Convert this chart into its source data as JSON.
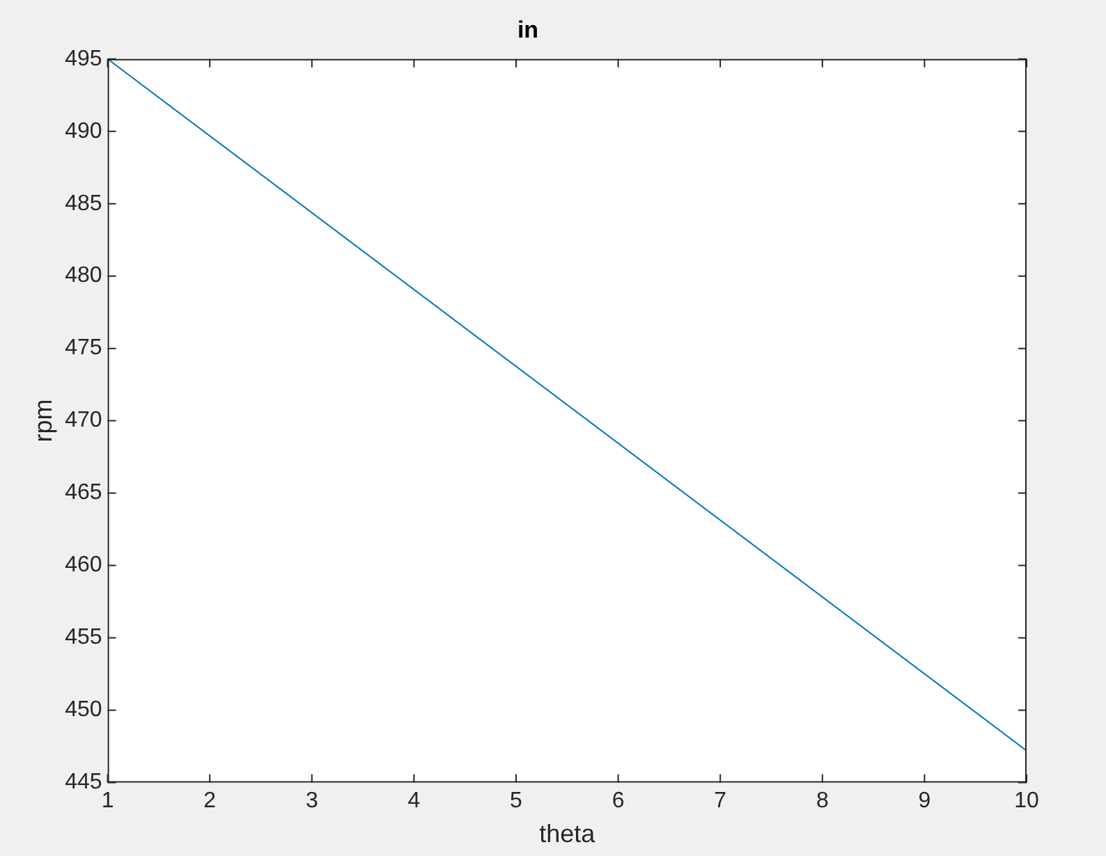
{
  "chart_data": {
    "type": "line",
    "title": "in",
    "xlabel": "theta",
    "ylabel": "rpm",
    "x": [
      1,
      10
    ],
    "series": [
      {
        "color": "#0072bd",
        "values": [
          495,
          447.2
        ]
      }
    ],
    "xlim": [
      1,
      10
    ],
    "xticks": [
      1,
      2,
      3,
      4,
      5,
      6,
      7,
      8,
      9,
      10
    ],
    "ylim": [
      445,
      495
    ],
    "yticks": [
      445,
      450,
      455,
      460,
      465,
      470,
      475,
      480,
      485,
      490,
      495
    ],
    "grid": false,
    "legend": false,
    "marker": "none",
    "line_style": "solid"
  }
}
